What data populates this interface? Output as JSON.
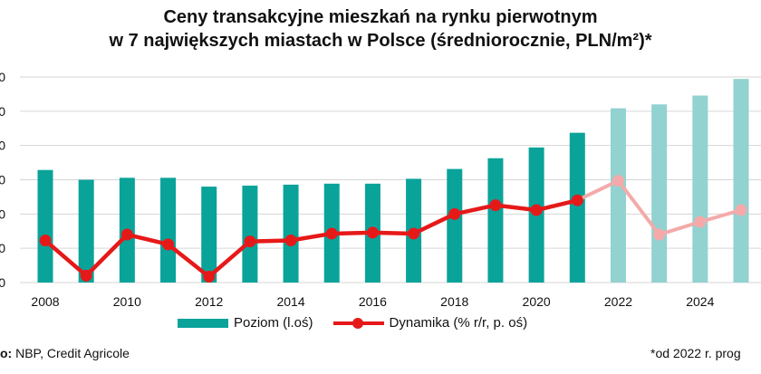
{
  "chart_data": {
    "type": "bar",
    "title_line1": "Ceny transakcyjne mieszkań na rynku pierwotnym",
    "title_line2": "w 7 największych miastach w Polsce (średniorocznie, PLN/m²)*",
    "x": [
      2008,
      2009,
      2010,
      2011,
      2012,
      2013,
      2014,
      2015,
      2016,
      2017,
      2018,
      2019,
      2020,
      2021,
      2022,
      2023,
      2024,
      2025
    ],
    "x_tick_labels": [
      "2008",
      "2010",
      "2012",
      "2014",
      "2016",
      "2018",
      "2020",
      "2022",
      "2024"
    ],
    "y_tick_labels": [
      "0",
      "0",
      "0",
      "0",
      "0",
      "0",
      "0"
    ],
    "series": [
      {
        "name": "Poziom (l.oś)",
        "type": "bar",
        "axis": "left",
        "color": "#0aa39a",
        "forecast_color": "#92d2d0",
        "values": [
          5.75,
          5.25,
          5.35,
          5.35,
          4.9,
          4.95,
          5.0,
          5.05,
          5.05,
          5.3,
          5.8,
          6.35,
          6.9,
          7.65,
          8.9,
          9.1,
          9.55,
          10.4
        ]
      },
      {
        "name": "Dynamika (% r/r, p. oś)",
        "type": "line",
        "axis": "right",
        "color": "#e61919",
        "forecast_color": "#f4aaaa",
        "values": [
          2.15,
          0.35,
          2.45,
          1.95,
          0.3,
          2.1,
          2.15,
          2.5,
          2.55,
          2.5,
          3.5,
          3.95,
          3.7,
          4.2,
          5.2,
          2.45,
          3.1,
          3.7
        ]
      }
    ],
    "forecast_from": 2022,
    "ylim": [
      0,
      10.5
    ],
    "grid": true,
    "legend_position": "bottom"
  },
  "source_label": "o:",
  "source_text": " NBP, Credit Agricole",
  "note": "*od 2022 r. prog"
}
